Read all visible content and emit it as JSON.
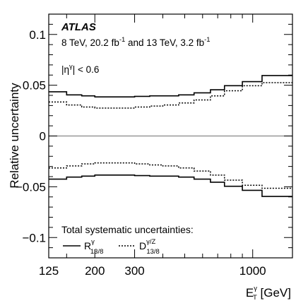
{
  "chart_data": {
    "type": "line",
    "experiment": "ATLAS",
    "lines": [
      {
        "main": "8 TeV, 20.2 fb",
        "sup": "-1",
        "tail": " and 13 TeV, 3.2 fb",
        "sup2": "-1"
      },
      {
        "main": "|η",
        "sup": "γ",
        "tail": "| < 0.6",
        "sup2": ""
      }
    ],
    "ylabel": "Relative uncertainty",
    "xlabel": {
      "main": "E",
      "sup": "γ",
      "sub": "T",
      "unit": " [GeV]"
    },
    "x_scale": "log",
    "xlim": [
      125,
      1500
    ],
    "ylim": [
      -0.12,
      0.12
    ],
    "x_ticks": [
      125,
      200,
      300,
      1000
    ],
    "x_tick_labels": [
      "125",
      "200",
      "300",
      "1000"
    ],
    "y_ticks": [
      -0.1,
      -0.05,
      0,
      0.05,
      0.1
    ],
    "y_tick_labels": [
      "−0.1",
      "−0.05",
      "0",
      "0.05",
      "0.1"
    ],
    "zero_line": true,
    "bin_edges": [
      125,
      150,
      175,
      200,
      250,
      300,
      350,
      400,
      470,
      550,
      650,
      750,
      900,
      1100,
      1500
    ],
    "series": [
      {
        "key": "R",
        "style": "solid",
        "upper": [
          0.0435,
          0.0405,
          0.0395,
          0.0385,
          0.0385,
          0.039,
          0.0395,
          0.0395,
          0.0405,
          0.0425,
          0.0455,
          0.0495,
          0.0535,
          0.0595
        ],
        "lower": [
          -0.0425,
          -0.0405,
          -0.0395,
          -0.0385,
          -0.0385,
          -0.039,
          -0.0395,
          -0.0395,
          -0.0405,
          -0.0425,
          -0.0455,
          -0.0495,
          -0.0535,
          -0.0595
        ]
      },
      {
        "key": "D",
        "style": "dotted",
        "upper": [
          0.0335,
          0.0305,
          0.0285,
          0.0275,
          0.0275,
          0.0285,
          0.0295,
          0.0305,
          0.0325,
          0.0355,
          0.0395,
          0.0445,
          0.0495,
          0.0525
        ],
        "lower": [
          -0.0315,
          -0.0295,
          -0.0275,
          -0.0265,
          -0.0265,
          -0.0275,
          -0.0285,
          -0.0295,
          -0.0315,
          -0.0345,
          -0.0385,
          -0.0435,
          -0.0485,
          -0.0515
        ]
      }
    ],
    "legend": {
      "title": "Total systematic uncertainties:",
      "placement": "bottom-left",
      "entries": [
        {
          "series": "R",
          "main": "R",
          "sup": "γ",
          "sub": "13/8"
        },
        {
          "series": "D",
          "main": "D",
          "sup": "γ/Z",
          "sub": "13/8"
        }
      ]
    }
  }
}
